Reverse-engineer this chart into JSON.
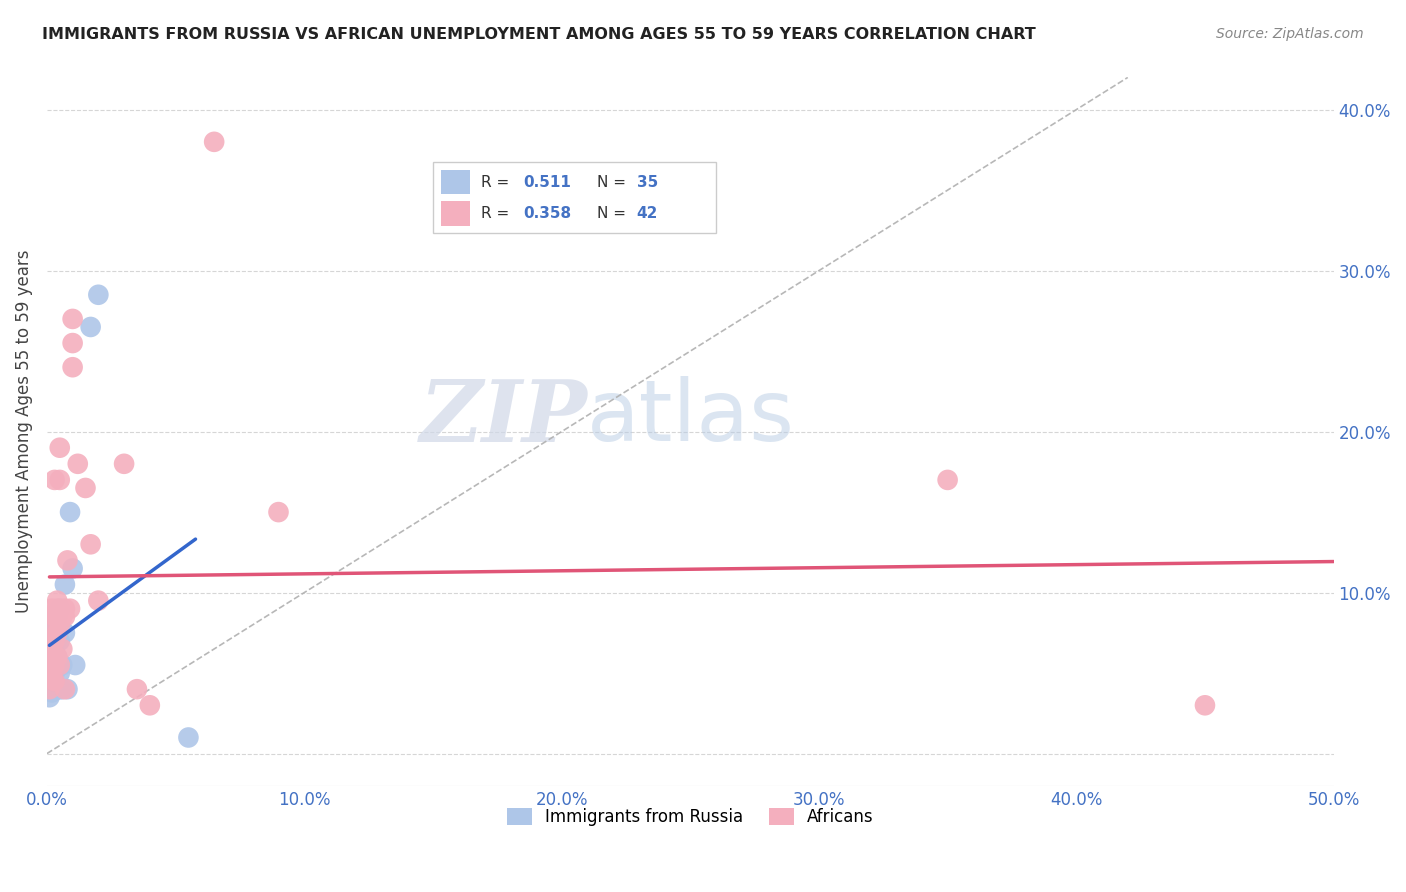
{
  "title": "IMMIGRANTS FROM RUSSIA VS AFRICAN UNEMPLOYMENT AMONG AGES 55 TO 59 YEARS CORRELATION CHART",
  "source": "Source: ZipAtlas.com",
  "ylabel": "Unemployment Among Ages 55 to 59 years",
  "xlim": [
    0.0,
    0.5
  ],
  "ylim": [
    -0.02,
    0.42
  ],
  "xticks": [
    0.0,
    0.1,
    0.2,
    0.3,
    0.4,
    0.5
  ],
  "yticks": [
    0.0,
    0.1,
    0.2,
    0.3,
    0.4
  ],
  "xticklabels": [
    "0.0%",
    "10.0%",
    "20.0%",
    "30.0%",
    "40.0%",
    "50.0%"
  ],
  "yticklabels": [
    "",
    "10.0%",
    "20.0%",
    "30.0%",
    "40.0%"
  ],
  "tick_color": "#4472c4",
  "series1_color": "#aec6e8",
  "series2_color": "#f4afbe",
  "line1_color": "#3366cc",
  "line2_color": "#e05577",
  "ref_line_color": "#b0b0b0",
  "watermark_zip": "ZIP",
  "watermark_atlas": "atlas",
  "blue_scatter": [
    [
      0.001,
      0.055
    ],
    [
      0.001,
      0.042
    ],
    [
      0.001,
      0.06
    ],
    [
      0.001,
      0.075
    ],
    [
      0.001,
      0.035
    ],
    [
      0.002,
      0.06
    ],
    [
      0.002,
      0.05
    ],
    [
      0.002,
      0.07
    ],
    [
      0.002,
      0.038
    ],
    [
      0.002,
      0.045
    ],
    [
      0.003,
      0.04
    ],
    [
      0.003,
      0.055
    ],
    [
      0.003,
      0.065
    ],
    [
      0.003,
      0.05
    ],
    [
      0.003,
      0.08
    ],
    [
      0.004,
      0.04
    ],
    [
      0.004,
      0.055
    ],
    [
      0.004,
      0.085
    ],
    [
      0.004,
      0.06
    ],
    [
      0.004,
      0.07
    ],
    [
      0.005,
      0.04
    ],
    [
      0.005,
      0.05
    ],
    [
      0.005,
      0.07
    ],
    [
      0.005,
      0.09
    ],
    [
      0.006,
      0.04
    ],
    [
      0.006,
      0.055
    ],
    [
      0.007,
      0.075
    ],
    [
      0.007,
      0.105
    ],
    [
      0.008,
      0.04
    ],
    [
      0.009,
      0.15
    ],
    [
      0.01,
      0.115
    ],
    [
      0.011,
      0.055
    ],
    [
      0.017,
      0.265
    ],
    [
      0.02,
      0.285
    ],
    [
      0.055,
      0.01
    ]
  ],
  "pink_scatter": [
    [
      0.001,
      0.05
    ],
    [
      0.001,
      0.04
    ],
    [
      0.001,
      0.06
    ],
    [
      0.001,
      0.07
    ],
    [
      0.002,
      0.048
    ],
    [
      0.002,
      0.065
    ],
    [
      0.002,
      0.08
    ],
    [
      0.002,
      0.09
    ],
    [
      0.003,
      0.045
    ],
    [
      0.003,
      0.055
    ],
    [
      0.003,
      0.07
    ],
    [
      0.003,
      0.085
    ],
    [
      0.003,
      0.17
    ],
    [
      0.004,
      0.06
    ],
    [
      0.004,
      0.075
    ],
    [
      0.004,
      0.09
    ],
    [
      0.004,
      0.095
    ],
    [
      0.005,
      0.055
    ],
    [
      0.005,
      0.08
    ],
    [
      0.005,
      0.17
    ],
    [
      0.005,
      0.19
    ],
    [
      0.006,
      0.065
    ],
    [
      0.006,
      0.085
    ],
    [
      0.007,
      0.04
    ],
    [
      0.007,
      0.085
    ],
    [
      0.007,
      0.09
    ],
    [
      0.008,
      0.12
    ],
    [
      0.009,
      0.09
    ],
    [
      0.01,
      0.24
    ],
    [
      0.01,
      0.255
    ],
    [
      0.01,
      0.27
    ],
    [
      0.012,
      0.18
    ],
    [
      0.015,
      0.165
    ],
    [
      0.017,
      0.13
    ],
    [
      0.02,
      0.095
    ],
    [
      0.03,
      0.18
    ],
    [
      0.035,
      0.04
    ],
    [
      0.04,
      0.03
    ],
    [
      0.065,
      0.38
    ],
    [
      0.09,
      0.15
    ],
    [
      0.35,
      0.17
    ],
    [
      0.45,
      0.03
    ]
  ]
}
